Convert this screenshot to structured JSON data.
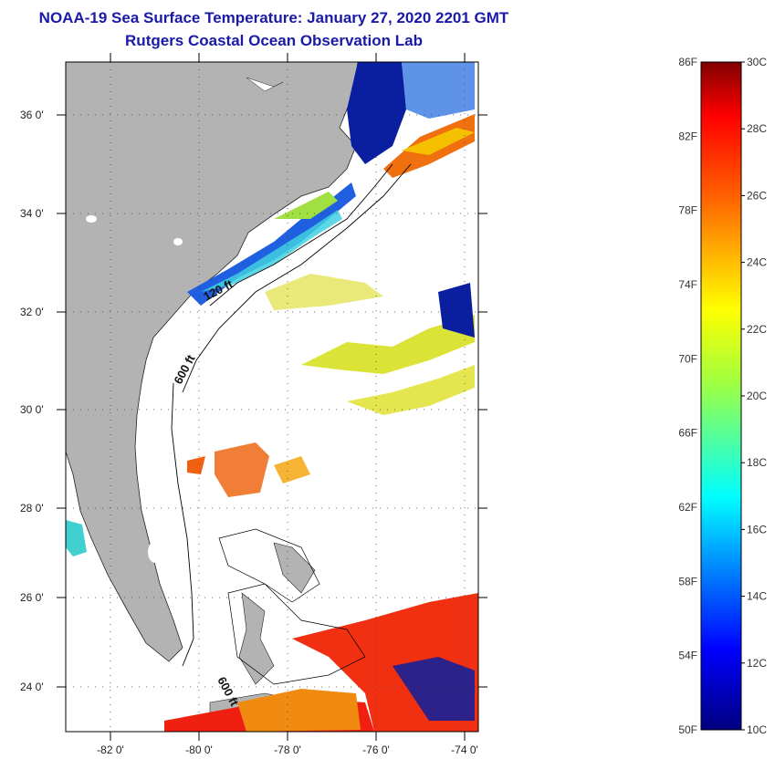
{
  "title": {
    "line1": "NOAA-19 Sea Surface Temperature:  January 27, 2020 2201 GMT",
    "line2": "Rutgers Coastal Ocean Observation Lab"
  },
  "map": {
    "lat_ticks": [
      "36 0'",
      "34 0'",
      "32 0'",
      "30 0'",
      "28 0'",
      "26 0'",
      "24 0'"
    ],
    "lon_ticks": [
      "-82 0'",
      "-80 0'",
      "-78 0'",
      "-76 0'",
      "-74 0'"
    ],
    "contour_labels": [
      "120 ft",
      "600 ft",
      "600 ft"
    ],
    "colors": {
      "land": "#b3b3b3",
      "no_data": "#ffffff",
      "frame": "#000000"
    }
  },
  "colorbar": {
    "f_labels": [
      "86F",
      "82F",
      "78F",
      "74F",
      "70F",
      "66F",
      "62F",
      "58F",
      "54F",
      "50F"
    ],
    "c_labels": [
      "30C",
      "28C",
      "26C",
      "24C",
      "22C",
      "20C",
      "18C",
      "16C",
      "14C",
      "12C",
      "10C"
    ],
    "min_c": 10,
    "max_c": 30
  }
}
